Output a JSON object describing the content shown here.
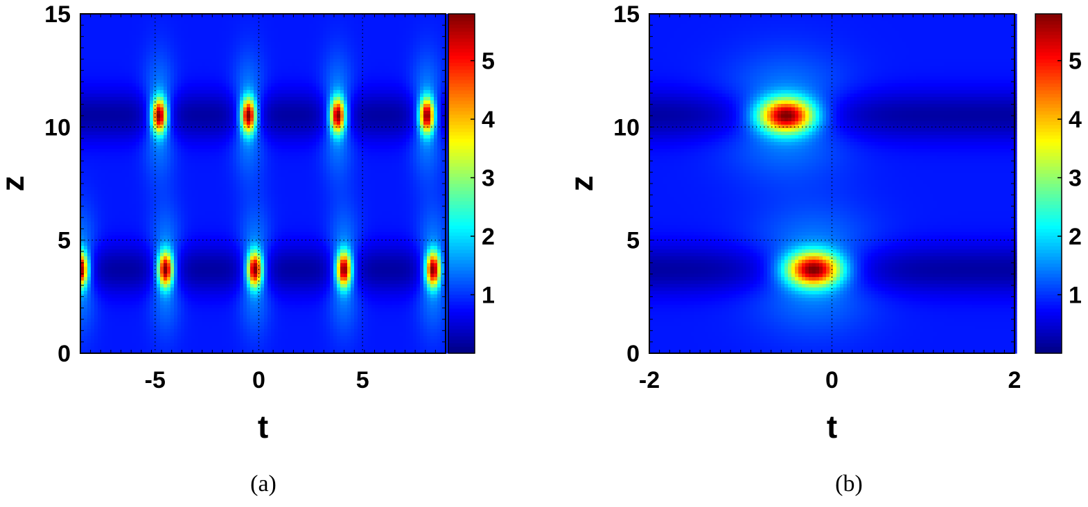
{
  "chart_data": [
    {
      "type": "heatmap",
      "caption": "(a)",
      "xlabel": "t",
      "ylabel": "z",
      "xlim": [
        -8.6,
        9.0
      ],
      "ylim": [
        0,
        15
      ],
      "xticks": [
        -5,
        0,
        5
      ],
      "xtick_labels": [
        "-5",
        "0",
        "5"
      ],
      "yticks": [
        0,
        5,
        10,
        15
      ],
      "ytick_labels": [
        "0",
        "5",
        "10",
        "15"
      ],
      "grid_x": [
        -5,
        0,
        5
      ],
      "grid_y": [
        5,
        10
      ],
      "colorbar": {
        "min": 0,
        "max": 5.8,
        "ticks": [
          1,
          2,
          3,
          4,
          5
        ],
        "tick_labels": [
          "1",
          "2",
          "3",
          "4",
          "5"
        ],
        "colormap": "jet"
      },
      "background_level": 0.85,
      "peaks": [
        {
          "t": -8.6,
          "z": 3.7,
          "value": 5.6
        },
        {
          "t": -4.5,
          "z": 3.7,
          "value": 5.6
        },
        {
          "t": -0.2,
          "z": 3.7,
          "value": 5.6
        },
        {
          "t": 4.1,
          "z": 3.7,
          "value": 5.6
        },
        {
          "t": 8.4,
          "z": 3.7,
          "value": 5.6
        },
        {
          "t": -4.8,
          "z": 10.5,
          "value": 5.6
        },
        {
          "t": -0.5,
          "z": 10.5,
          "value": 5.6
        },
        {
          "t": 3.8,
          "z": 10.5,
          "value": 5.6
        },
        {
          "t": 8.1,
          "z": 10.5,
          "value": 5.6
        }
      ],
      "dark_bands_z": [
        3.7,
        10.5
      ],
      "peak_width_t": 0.35,
      "peak_width_z": 0.75
    },
    {
      "type": "heatmap",
      "caption": "(b)",
      "xlabel": "t",
      "ylabel": "z",
      "xlim": [
        -2,
        2
      ],
      "ylim": [
        0,
        15
      ],
      "xticks": [
        -2,
        0,
        2
      ],
      "xtick_labels": [
        "-2",
        "0",
        "2"
      ],
      "yticks": [
        0,
        5,
        10,
        15
      ],
      "ytick_labels": [
        "0",
        "5",
        "10",
        "15"
      ],
      "grid_x": [
        0
      ],
      "grid_y": [
        5,
        10
      ],
      "colorbar": {
        "min": 0,
        "max": 5.8,
        "ticks": [
          1,
          2,
          3,
          4,
          5
        ],
        "tick_labels": [
          "1",
          "2",
          "3",
          "4",
          "5"
        ],
        "colormap": "jet"
      },
      "background_level": 0.85,
      "peaks": [
        {
          "t": -0.5,
          "z": 10.5,
          "value": 5.6
        },
        {
          "t": -0.2,
          "z": 3.7,
          "value": 5.6
        }
      ],
      "dark_bands_z": [
        3.7,
        10.5
      ],
      "peak_width_t": 0.3,
      "peak_width_z": 0.75
    }
  ]
}
